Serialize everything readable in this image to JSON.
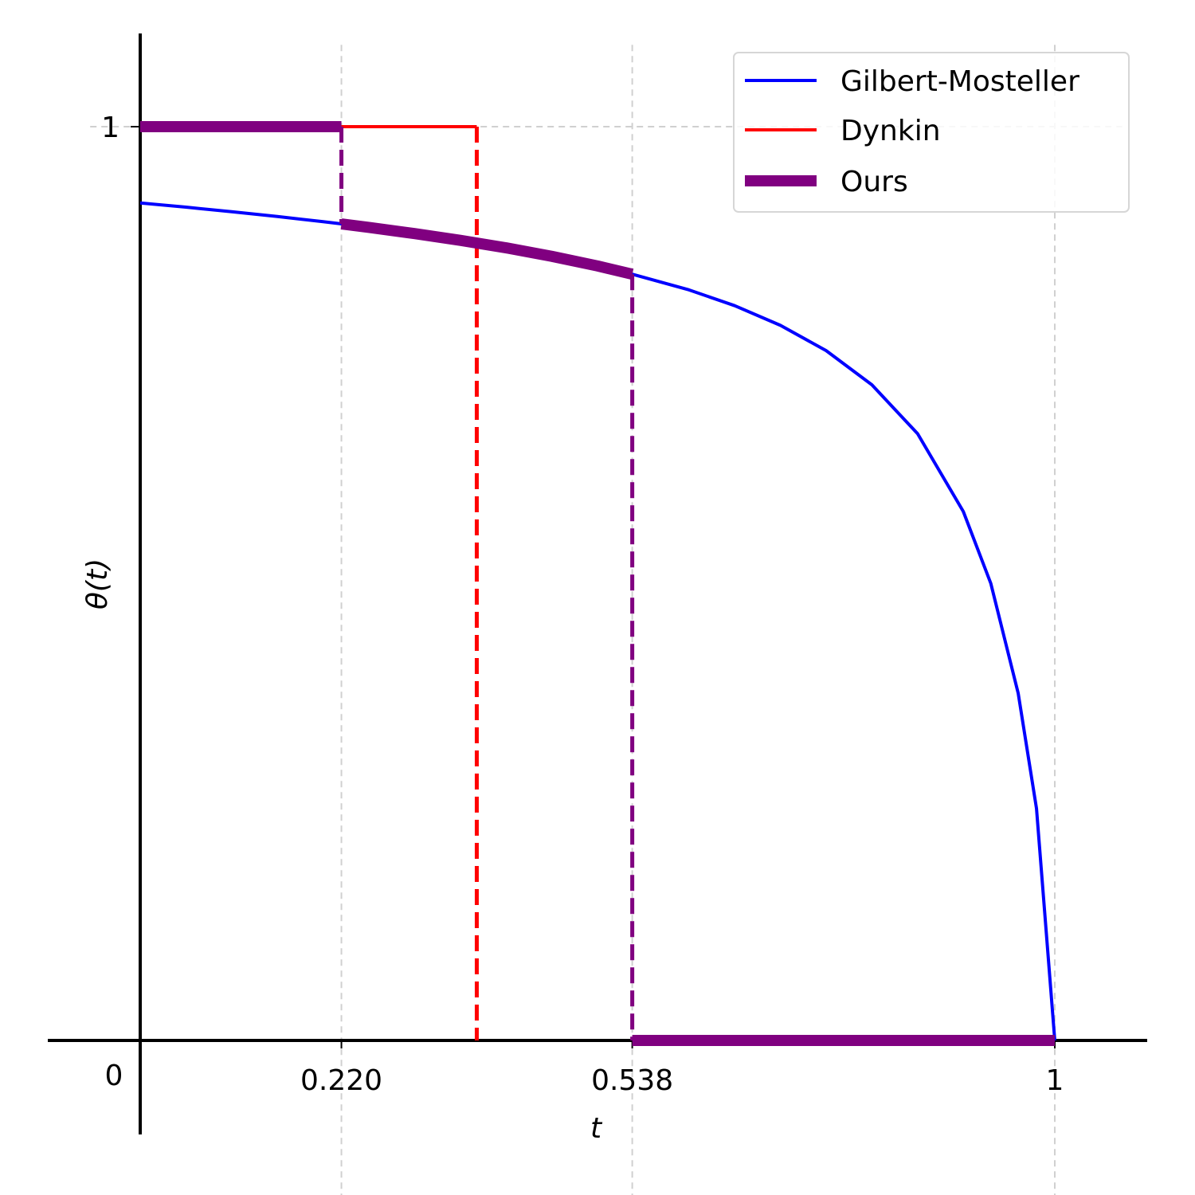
{
  "chart_data": {
    "type": "line",
    "title": "",
    "xlabel": "t",
    "ylabel": "θ(t)",
    "xlim": [
      -0.1,
      1.1
    ],
    "ylim": [
      -0.1,
      1.1
    ],
    "grid": "dashed, at labeled ticks",
    "legend_position": "top-right",
    "x_ticks": [
      {
        "value": 0.22,
        "label": "0.220"
      },
      {
        "value": 0.538,
        "label": "0.538"
      },
      {
        "value": 1,
        "label": "1"
      }
    ],
    "y_ticks": [
      {
        "value": 1,
        "label": "1"
      }
    ],
    "origin_label": "0",
    "series": [
      {
        "name": "Gilbert-Mosteller",
        "color": "#0000ff",
        "style": "solid",
        "x": [
          0,
          0.05,
          0.1,
          0.15,
          0.2,
          0.22,
          0.25,
          0.3,
          0.35,
          0.4,
          0.45,
          0.5,
          0.538,
          0.6,
          0.65,
          0.7,
          0.75,
          0.8,
          0.85,
          0.9,
          0.93,
          0.96,
          0.98,
          1.0
        ],
        "y": [
          0.9165,
          0.9119,
          0.9069,
          0.9017,
          0.896,
          0.8936,
          0.8898,
          0.883,
          0.8756,
          0.8674,
          0.8581,
          0.8476,
          0.8385,
          0.8214,
          0.8041,
          0.7826,
          0.7549,
          0.7175,
          0.664,
          0.5788,
          0.5003,
          0.3799,
          0.2539,
          0.0
        ]
      },
      {
        "name": "Dynkin",
        "color": "#ff0000",
        "style": "solid",
        "x": [
          0,
          0.368
        ],
        "y": [
          1,
          1
        ],
        "drop": {
          "x": 0.368,
          "from": 1,
          "to": 0,
          "style": "dashed"
        }
      },
      {
        "name": "Ours",
        "color": "#800080",
        "style": "thick",
        "segments": [
          {
            "x": [
              0,
              0.22
            ],
            "y": [
              1,
              1
            ]
          },
          {
            "x": [
              0.22,
              0.25,
              0.3,
              0.35,
              0.4,
              0.45,
              0.5,
              0.538
            ],
            "y": [
              0.8936,
              0.8898,
              0.883,
              0.8756,
              0.8674,
              0.8581,
              0.8476,
              0.8385
            ]
          },
          {
            "x": [
              0.538,
              1.0
            ],
            "y": [
              0,
              0
            ]
          }
        ],
        "drops": [
          {
            "x": 0.22,
            "from": 1,
            "to": 0.8936,
            "style": "dashed"
          },
          {
            "x": 0.538,
            "from": 0.8385,
            "to": 0,
            "style": "dashed"
          }
        ]
      }
    ]
  }
}
